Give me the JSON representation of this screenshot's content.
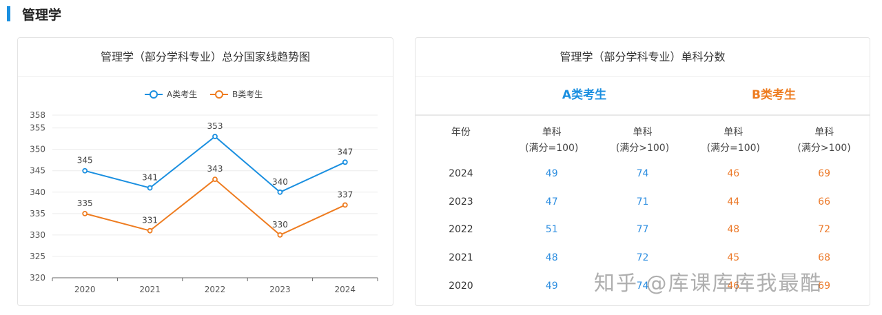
{
  "section": {
    "title": "管理学"
  },
  "chart_panel": {
    "title": "管理学（部分学科专业）总分国家线趋势图"
  },
  "chart_data": {
    "type": "line",
    "title": "管理学（部分学科专业）总分国家线趋势图",
    "categories": [
      "2020",
      "2021",
      "2022",
      "2023",
      "2024"
    ],
    "series": [
      {
        "name": "A类考生",
        "values": [
          345,
          341,
          353,
          340,
          347
        ],
        "color": "#1a8fe0"
      },
      {
        "name": "B类考生",
        "values": [
          335,
          331,
          343,
          330,
          337
        ],
        "color": "#ee7c20"
      }
    ],
    "yticks": [
      320,
      325,
      330,
      335,
      340,
      345,
      350,
      355,
      358
    ],
    "ylim": [
      320,
      358
    ],
    "grid": "horizontal",
    "legend": "top-center"
  },
  "table_panel": {
    "title": "管理学（部分学科专业）单科分数",
    "group_a": "A类考生",
    "group_b": "B类考生",
    "headers": {
      "year": "年份",
      "c1": [
        "单科",
        "(满分=100)"
      ],
      "c2": [
        "单科",
        "(满分>100)"
      ],
      "c3": [
        "单科",
        "(满分=100)"
      ],
      "c4": [
        "单科",
        "(满分>100)"
      ]
    },
    "rows": [
      [
        "2024",
        "49",
        "74",
        "46",
        "69"
      ],
      [
        "2023",
        "47",
        "71",
        "44",
        "66"
      ],
      [
        "2022",
        "51",
        "77",
        "48",
        "72"
      ],
      [
        "2021",
        "48",
        "72",
        "45",
        "68"
      ],
      [
        "2020",
        "49",
        "74",
        "46",
        "69"
      ]
    ]
  },
  "watermark": "知乎 @库课库库我最酷"
}
